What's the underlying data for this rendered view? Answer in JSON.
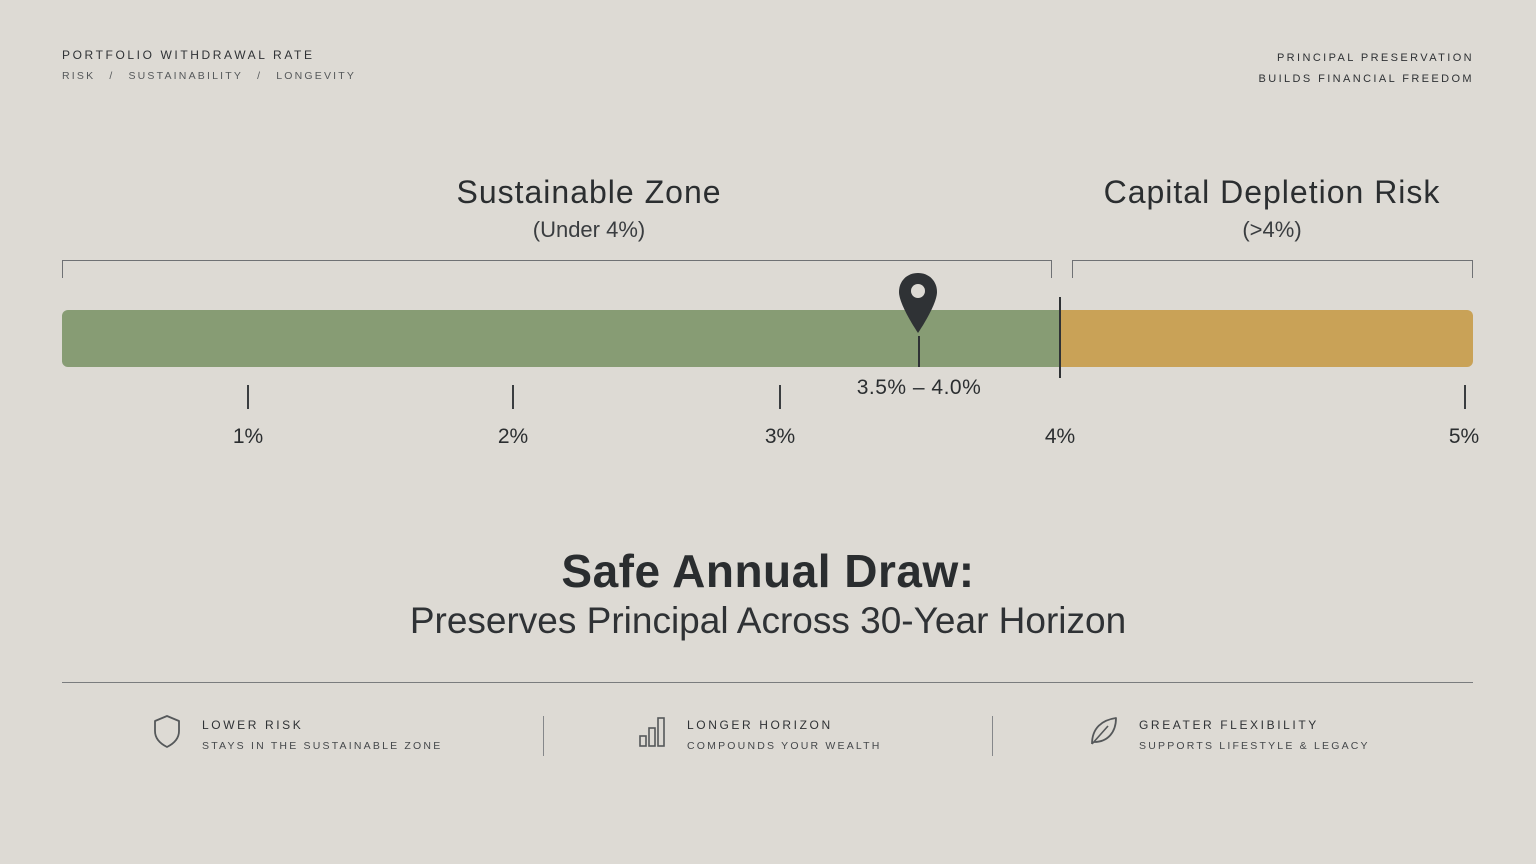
{
  "header": {
    "title": "PORTFOLIO WITHDRAWAL RATE",
    "crumbs": [
      "RISK",
      "SUSTAINABILITY",
      "LONGEVITY"
    ],
    "crumb_separator": "/",
    "right_line1": "PRINCIPAL PRESERVATION",
    "right_line2": "BUILDS FINANCIAL FREEDOM"
  },
  "zones": {
    "sustainable": {
      "title": "Sustainable Zone",
      "subtitle": "(Under 4%)",
      "color": "#879c74"
    },
    "risk": {
      "title": "Capital Depletion Risk",
      "subtitle": "(>4%)",
      "color": "#c9a257"
    }
  },
  "scale": {
    "ticks": [
      "1%",
      "2%",
      "3%",
      "4%",
      "5%"
    ],
    "marker_range": "3.5% – 4.0%"
  },
  "headline": {
    "title": "Safe Annual Draw:",
    "subtitle": "Preserves Principal Across 30-Year Horizon"
  },
  "features": [
    {
      "icon": "shield-icon",
      "title": "LOWER RISK",
      "subtitle": "STAYS IN THE SUSTAINABLE ZONE"
    },
    {
      "icon": "bar-chart-icon",
      "title": "LONGER HORIZON",
      "subtitle": "COMPOUNDS YOUR WEALTH"
    },
    {
      "icon": "leaf-icon",
      "title": "GREATER FLEXIBILITY",
      "subtitle": "SUPPORTS LIFESTYLE & LEGACY"
    }
  ]
}
